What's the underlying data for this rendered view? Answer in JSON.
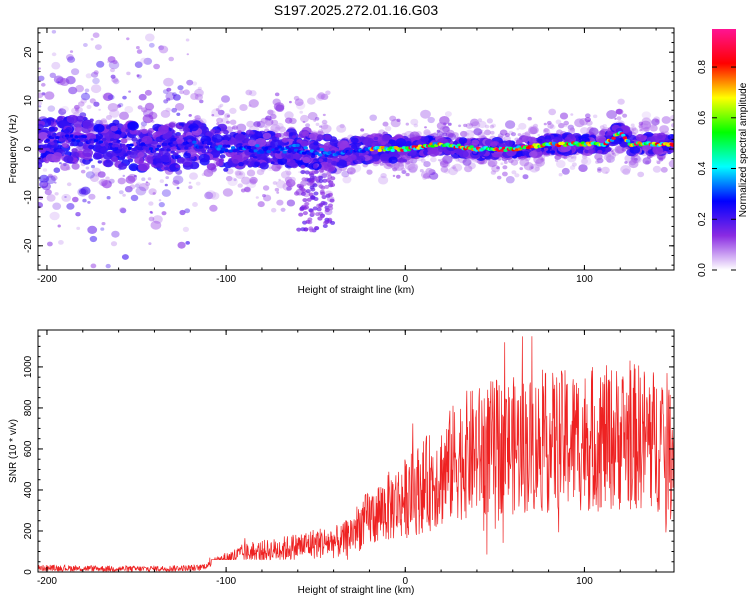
{
  "chart_data": [
    {
      "type": "heatmap",
      "title": "S197.2025.272.01.16.G03",
      "xlabel": "Height of straight line (km)",
      "ylabel": "Frequency (Hz)",
      "xlim": [
        -205,
        150
      ],
      "ylim": [
        -25,
        25
      ],
      "xticks": [
        "-200",
        "-100",
        "0",
        "100"
      ],
      "yticks": [
        "-20",
        "-10",
        "0",
        "10",
        "20"
      ],
      "trace_points": [
        [
          -200,
          2
        ],
        [
          -180,
          2
        ],
        [
          -160,
          1
        ],
        [
          -140,
          0
        ],
        [
          -120,
          1
        ],
        [
          -100,
          0
        ],
        [
          -80,
          0
        ],
        [
          -60,
          0
        ],
        [
          -40,
          -1
        ],
        [
          -20,
          0
        ],
        [
          0,
          0
        ],
        [
          20,
          1
        ],
        [
          40,
          0
        ],
        [
          60,
          0
        ],
        [
          80,
          1
        ],
        [
          100,
          1
        ],
        [
          112,
          1
        ],
        [
          120,
          3.5
        ],
        [
          126,
          1
        ],
        [
          140,
          1
        ],
        [
          150,
          1
        ]
      ],
      "colorbar": {
        "label": "Normalized spectral amplitude",
        "ticks": [
          "0.0",
          "0.2",
          "0.4",
          "0.6",
          "0.8"
        ],
        "range": [
          0,
          0.95
        ],
        "stops": [
          "#ffffff",
          "#8a2be2",
          "#0000ff",
          "#00ffff",
          "#00ff00",
          "#ffff00",
          "#ff0000",
          "#ff1493"
        ]
      }
    },
    {
      "type": "line",
      "xlabel": "Height of straight line (km)",
      "ylabel": "SNR (10 * v/v)",
      "xlim": [
        -205,
        150
      ],
      "ylim": [
        0,
        1180
      ],
      "xticks": [
        "-200",
        "-100",
        "0",
        "100"
      ],
      "yticks": [
        "0",
        "200",
        "400",
        "600",
        "800",
        "1000"
      ],
      "series": [
        {
          "name": "SNR",
          "color": "#ee2222",
          "envelope_x": [
            -205,
            -150,
            -115,
            -105,
            -90,
            -70,
            -50,
            -35,
            -25,
            -15,
            0,
            10,
            20,
            30,
            50,
            70,
            90,
            110,
            130,
            150
          ],
          "envelope_y": [
            20,
            15,
            20,
            50,
            90,
            110,
            140,
            150,
            230,
            290,
            360,
            420,
            470,
            560,
            610,
            620,
            640,
            650,
            660,
            620
          ]
        }
      ]
    }
  ]
}
